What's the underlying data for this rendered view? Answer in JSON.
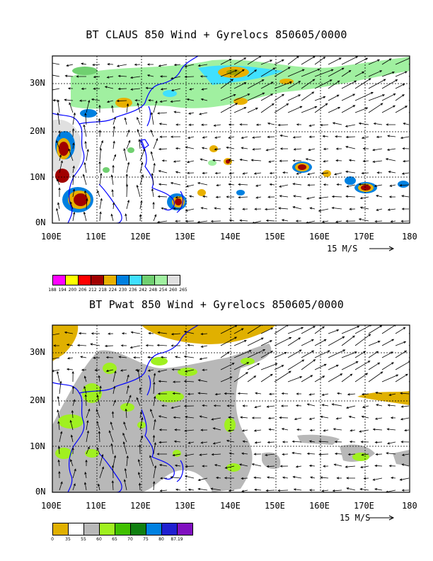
{
  "map1": {
    "title": "BT CLAUS 850 Wind + Gyrelocs 850605/0000",
    "lat_labels": [
      "30N",
      "20N",
      "10N",
      "0N"
    ],
    "lon_labels": [
      "100E",
      "110E",
      "120E",
      "130E",
      "140E",
      "150E",
      "160E",
      "170E",
      "180"
    ],
    "vector_ref": "15 M/S",
    "legend": {
      "colors": [
        "#ff00ff",
        "#ffff00",
        "#ff0000",
        "#a00000",
        "#e8b000",
        "#0080e0",
        "#40e0ff",
        "#70d070",
        "#a0f0a0",
        "#e0e0e0"
      ],
      "labels": [
        "188",
        "194",
        "200",
        "206",
        "212",
        "218",
        "224",
        "230",
        "236",
        "242",
        "248",
        "254",
        "260",
        "265"
      ]
    }
  },
  "map2": {
    "title": "BT Pwat 850 Wind + Gyrelocs 850605/0000",
    "lat_labels": [
      "30N",
      "20N",
      "10N",
      "0N"
    ],
    "lon_labels": [
      "100E",
      "110E",
      "120E",
      "130E",
      "140E",
      "150E",
      "160E",
      "170E",
      "180"
    ],
    "vector_ref": "15 M/S",
    "legend": {
      "colors": [
        "#e0b000",
        "#ffffff",
        "#b8b8b8",
        "#a0f020",
        "#40c000",
        "#108010",
        "#0080e0",
        "#2020d0",
        "#8010c0"
      ],
      "labels": [
        "0",
        "35",
        "55",
        "60",
        "65",
        "70",
        "75",
        "80",
        "87.19"
      ]
    }
  },
  "colors": {
    "coastline": "#0000ff",
    "frame": "#000000"
  }
}
